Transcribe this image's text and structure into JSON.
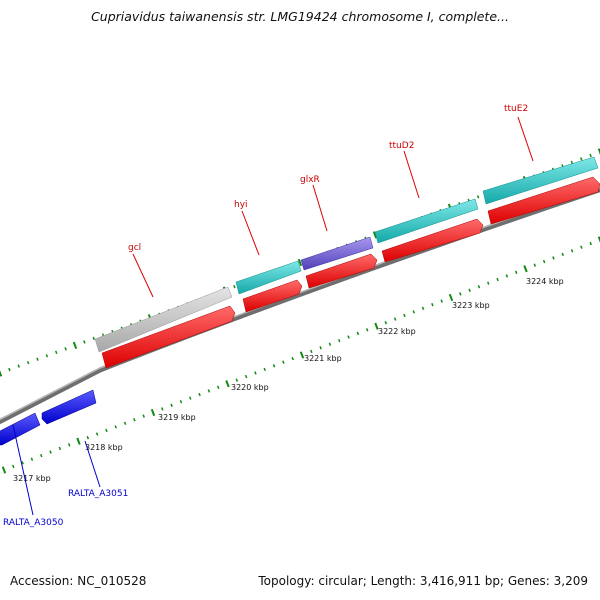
{
  "title": "Cupriavidus taiwanensis str. LMG19424 chromosome I, complete...",
  "footer": {
    "accession": "Accession: NC_010528",
    "summary": "Topology: circular; Length: 3,416,911 bp; Genes: 3,209"
  },
  "colors": {
    "backbone": "#808080",
    "forward_gene": "#ff0000",
    "reverse_gene": "#0000ee",
    "tick": "#138a13",
    "label_red": "#cc0000",
    "label_blue": "#0000cc",
    "gray_feature": "#bbbbbb",
    "teal_feature": "#1fc7c7",
    "purple_feature": "#6d5bc9"
  },
  "scale_labels": [
    "3217 kbp",
    "3218 kbp",
    "3219 kbp",
    "3220 kbp",
    "3221 kbp",
    "3222 kbp",
    "3223 kbp",
    "3224 kbp"
  ],
  "gene_labels": {
    "gcl": "gcl",
    "hyi": "hyi",
    "glxR": "glxR",
    "ttuD2": "ttuD2",
    "ttuE2": "ttuE2",
    "ralta_a3050": "RALTA_A3050",
    "ralta_a3051": "RALTA_A3051"
  }
}
